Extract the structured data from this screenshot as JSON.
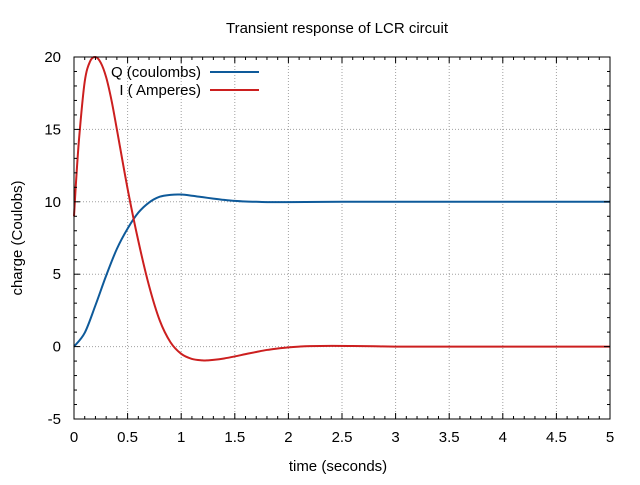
{
  "chart_data": {
    "type": "line",
    "title": "Transient response of LCR circuit",
    "xlabel": "time (seconds)",
    "ylabel": "charge (Coulobs)",
    "xlim": [
      0,
      5
    ],
    "ylim": [
      -5,
      20
    ],
    "xticks": [
      0,
      0.5,
      1,
      1.5,
      2,
      2.5,
      3,
      3.5,
      4,
      4.5,
      5
    ],
    "xtick_labels": [
      "0",
      "0.5",
      "1",
      "1.5",
      "2",
      "2.5",
      "3",
      "3.5",
      "4",
      "4.5",
      "5"
    ],
    "yticks": [
      -5,
      0,
      5,
      10,
      15,
      20
    ],
    "ytick_labels": [
      "-5",
      "0",
      "5",
      "10",
      "15",
      "20"
    ],
    "grid": true,
    "legend_position": "top-left",
    "series": [
      {
        "name": "Q (coulombs)",
        "color": "#0e5a9a",
        "x": [
          0,
          0.1,
          0.2,
          0.3,
          0.4,
          0.5,
          0.6,
          0.7,
          0.8,
          0.9,
          1.0,
          1.1,
          1.2,
          1.3,
          1.4,
          1.5,
          1.6,
          1.7,
          1.8,
          1.9,
          2.0,
          2.5,
          3.0,
          3.5,
          4.0,
          4.5,
          5.0
        ],
        "values": [
          0,
          0.95,
          2.85,
          4.9,
          6.75,
          8.15,
          9.25,
          9.95,
          10.35,
          10.48,
          10.5,
          10.42,
          10.32,
          10.22,
          10.13,
          10.06,
          10.02,
          10.0,
          9.98,
          9.98,
          9.98,
          10.0,
          10.0,
          10.0,
          10.0,
          10.0,
          10.0
        ]
      },
      {
        "name": "I ( Amperes)",
        "color": "#cc1f1f",
        "x": [
          0,
          0.02,
          0.05,
          0.1,
          0.15,
          0.2,
          0.25,
          0.3,
          0.35,
          0.4,
          0.5,
          0.6,
          0.7,
          0.8,
          0.9,
          1.0,
          1.1,
          1.2,
          1.25,
          1.3,
          1.4,
          1.5,
          1.6,
          1.7,
          1.8,
          1.9,
          2.0,
          2.1,
          2.2,
          2.4,
          2.6,
          2.8,
          3.0,
          3.5,
          4.0,
          4.5,
          5.0
        ],
        "values": [
          9.0,
          11.5,
          14.6,
          18.3,
          19.7,
          20.0,
          19.6,
          18.6,
          17.0,
          15.0,
          10.9,
          7.3,
          4.2,
          1.8,
          0.3,
          -0.5,
          -0.85,
          -0.95,
          -0.95,
          -0.92,
          -0.82,
          -0.68,
          -0.52,
          -0.37,
          -0.23,
          -0.13,
          -0.05,
          0.0,
          0.03,
          0.05,
          0.04,
          0.02,
          0.0,
          0.0,
          0.0,
          0.0,
          0.0
        ]
      }
    ]
  }
}
